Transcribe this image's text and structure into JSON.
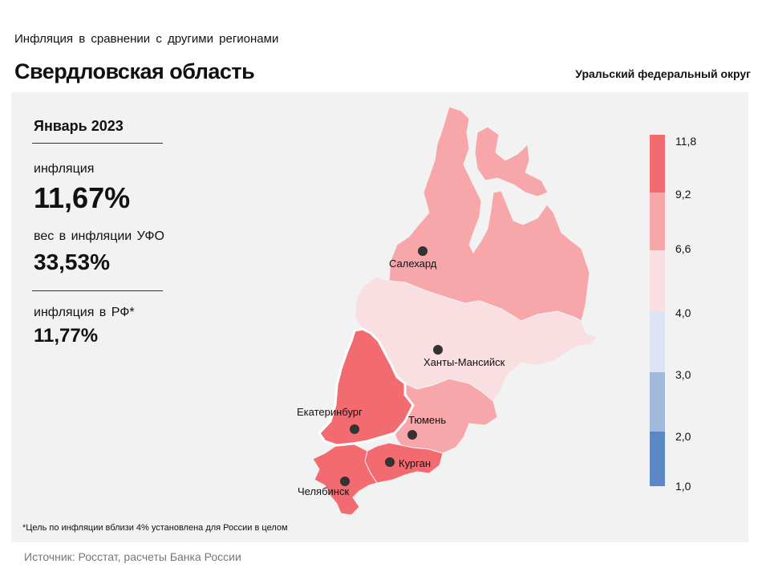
{
  "header": {
    "subtitle": "Инфляция  в сравнении  с другими  регионами",
    "title": "Свердловская область",
    "district": "Уральский федеральный округ"
  },
  "stats": {
    "period": "Январь 2023",
    "inflation_label": "инфляция",
    "inflation_value": "11,67%",
    "weight_label": "вес в инфляции  УФО",
    "weight_value": "33,53%",
    "rf_label": "инфляция  в РФ*",
    "rf_value": "11,77%"
  },
  "map": {
    "regions": [
      {
        "name": "Ямало-Ненецкий АО",
        "fill": "#f7a6aa"
      },
      {
        "name": "Ханты-Мансийский АО",
        "fill": "#f9dfe1"
      },
      {
        "name": "Свердловская область",
        "fill": "#f26b70",
        "selected": true
      },
      {
        "name": "Тюменская область",
        "fill": "#f7a6aa"
      },
      {
        "name": "Челябинская область",
        "fill": "#f26b70"
      },
      {
        "name": "Курганская область",
        "fill": "#f26b70"
      }
    ],
    "cities": {
      "salekhard": "Салехард",
      "khanty": "Ханты-Мансийск",
      "ekaterinburg": "Екатеринбург",
      "tyumen": "Тюмень",
      "kurgan": "Курган",
      "chelyabinsk": "Челябинск"
    }
  },
  "legend": {
    "ticks": [
      "11,8",
      "9,2",
      "6,6",
      "4,0",
      "3,0",
      "2,0",
      "1,0"
    ],
    "colors": [
      "#f26b70",
      "#f7a6aa",
      "#f9dfe1",
      "#dce3f2",
      "#a3b9dc",
      "#5b87c5"
    ]
  },
  "footnote": "*Цель по инфляции вблизи 4% установлена для России в целом",
  "source": "Источник: Росстат, расчеты Банка России"
}
